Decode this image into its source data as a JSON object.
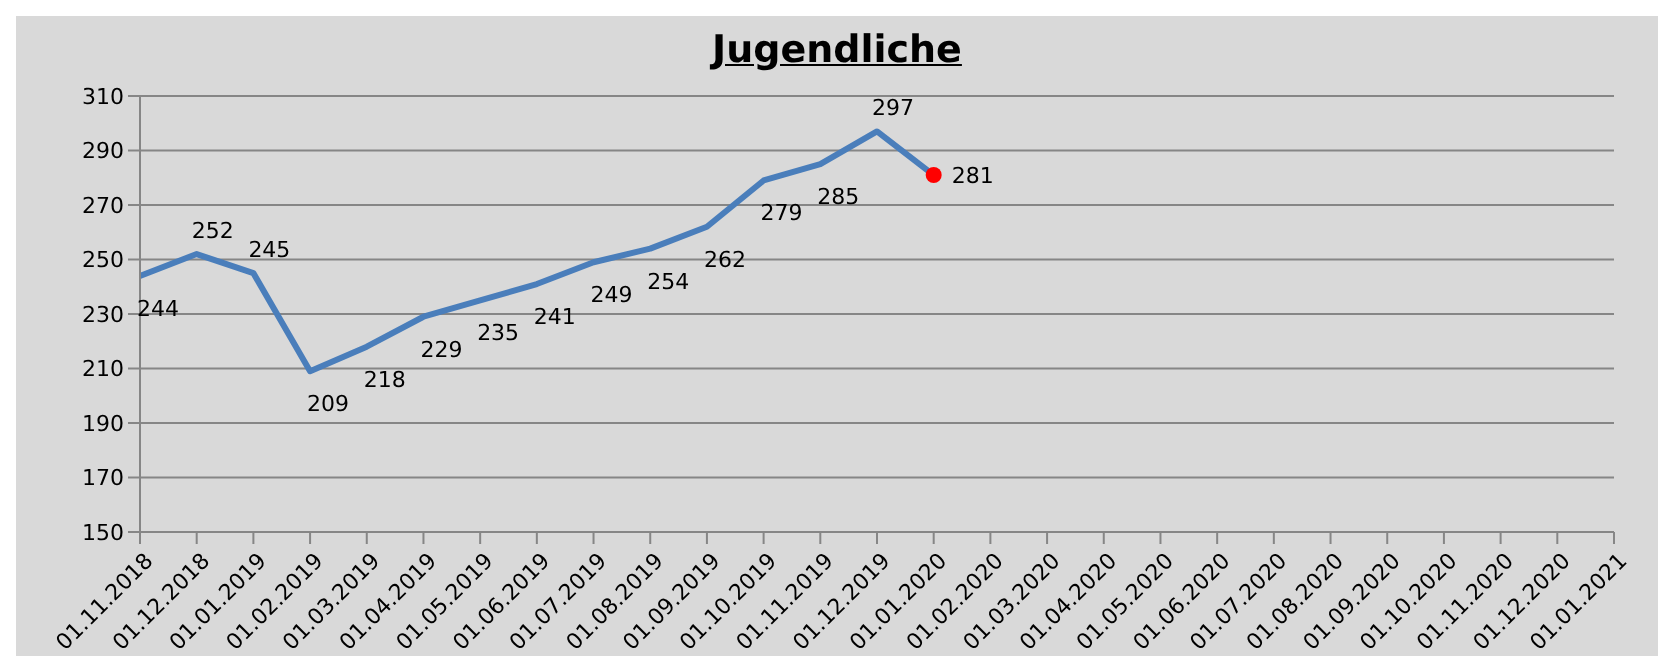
{
  "chart_data": {
    "type": "line",
    "title": "Jugendliche",
    "categories": [
      "01.11.2018",
      "01.12.2018",
      "01.01.2019",
      "01.02.2019",
      "01.03.2019",
      "01.04.2019",
      "01.05.2019",
      "01.06.2019",
      "01.07.2019",
      "01.08.2019",
      "01.09.2019",
      "01.10.2019",
      "01.11.2019",
      "01.12.2019",
      "01.01.2020",
      "01.02.2020",
      "01.03.2020",
      "01.04.2020",
      "01.05.2020",
      "01.06.2020",
      "01.07.2020",
      "01.08.2020",
      "01.09.2020",
      "01.10.2020",
      "01.11.2020",
      "01.12.2020",
      "01.01.2021"
    ],
    "series": [
      {
        "color": "#4a7ebb",
        "values": [
          244,
          252,
          245,
          209,
          218,
          229,
          235,
          241,
          249,
          254,
          262,
          279,
          285,
          297,
          281,
          null,
          null,
          null,
          null,
          null,
          null,
          null,
          null,
          null,
          null,
          null,
          null
        ],
        "value_labels": [
          "244",
          "252",
          "245",
          "209",
          "218",
          "229",
          "235",
          "241",
          "249",
          "254",
          "262",
          "279",
          "285",
          "297",
          null,
          null,
          null,
          null,
          null,
          null,
          null,
          null,
          null,
          null,
          null,
          null,
          null
        ]
      },
      {
        "type": "scatter",
        "marker": "circle",
        "color": "#ff0000",
        "values": [
          null,
          null,
          null,
          null,
          null,
          null,
          null,
          null,
          null,
          null,
          null,
          null,
          null,
          null,
          281,
          null,
          null,
          null,
          null,
          null,
          null,
          null,
          null,
          null,
          null,
          null,
          null
        ],
        "value_labels": [
          null,
          null,
          null,
          null,
          null,
          null,
          null,
          null,
          null,
          null,
          null,
          null,
          null,
          null,
          "281",
          null,
          null,
          null,
          null,
          null,
          null,
          null,
          null,
          null,
          null,
          null,
          null
        ]
      }
    ],
    "ylim": [
      150,
      310
    ],
    "yticks": [
      150,
      170,
      190,
      210,
      230,
      250,
      270,
      290,
      310
    ],
    "grid": "y",
    "marker": "none",
    "legend": false
  }
}
